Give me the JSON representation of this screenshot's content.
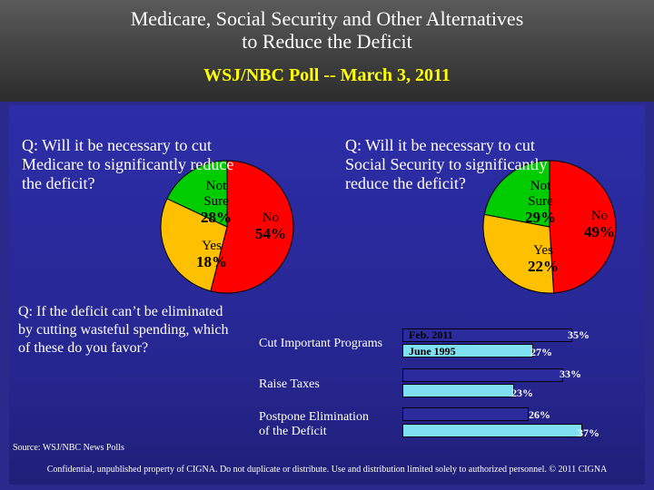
{
  "header": {
    "title_line1": "Medicare, Social Security and Other Alternatives",
    "title_line2": "to Reduce the Deficit",
    "subtitle": "WSJ/NBC Poll -- March 3, 2011"
  },
  "questions": {
    "medicare": "Q: Will it be necessary to cut Medicare to significantly reduce the deficit?",
    "social_security": "Q: Will it be necessary to cut Social Security to significantly reduce the deficit?",
    "preference": "Q: If the deficit can’t be eliminated by cutting wasteful spending, which of these do you favor?"
  },
  "pie_labels": {
    "not_sure_line1": "Not",
    "not_sure_line2": "Sure",
    "no": "No",
    "yes": "Yes"
  },
  "pie_values": {
    "medicare": {
      "not_sure": "28%",
      "no": "54%",
      "yes": "18%"
    },
    "social_security": {
      "not_sure": "29%",
      "no": "49%",
      "yes": "22%"
    }
  },
  "bar_chart": {
    "categories": [
      "Cut Important Programs",
      "Raise Taxes",
      "Postpone Elimination of the Deficit"
    ],
    "labels": {
      "cat3_line1": "Postpone Elimination",
      "cat3_line2": "of the Deficit"
    },
    "legend": {
      "feb": "Feb. 2011",
      "june": "June 1995"
    },
    "value_labels": {
      "cut_feb": "35%",
      "cut_june": "27%",
      "tax_feb": "33%",
      "tax_june": "23%",
      "post_feb": "26%",
      "post_june": "37%"
    }
  },
  "source": "Source: WSJ/NBC News Polls",
  "footer": "Confidential, unpublished property of CIGNA. Do not duplicate or distribute. Use and distribution limited solely to authorized personnel. © 2011 CIGNA",
  "colors": {
    "no": "#ff0000",
    "not_sure": "#ffc000",
    "yes": "#00cc00",
    "feb": "#2b2b9e",
    "june": "#7fe0f2"
  },
  "chart_data": [
    {
      "type": "pie",
      "title": "Q: Will it be necessary to cut Medicare to significantly reduce the deficit?",
      "categories": [
        "No",
        "Not Sure",
        "Yes"
      ],
      "values": [
        54,
        28,
        18
      ]
    },
    {
      "type": "pie",
      "title": "Q: Will it be necessary to cut Social Security to significantly reduce the deficit?",
      "categories": [
        "No",
        "Not Sure",
        "Yes"
      ],
      "values": [
        49,
        29,
        22
      ]
    },
    {
      "type": "bar",
      "orientation": "horizontal",
      "title": "Q: If the deficit can’t be eliminated by cutting wasteful spending, which of these do you favor?",
      "categories": [
        "Cut Important Programs",
        "Raise Taxes",
        "Postpone Elimination of the Deficit"
      ],
      "series": [
        {
          "name": "Feb. 2011",
          "values": [
            35,
            33,
            26
          ]
        },
        {
          "name": "June 1995",
          "values": [
            27,
            23,
            37
          ]
        }
      ],
      "xlim": [
        0,
        40
      ]
    }
  ]
}
